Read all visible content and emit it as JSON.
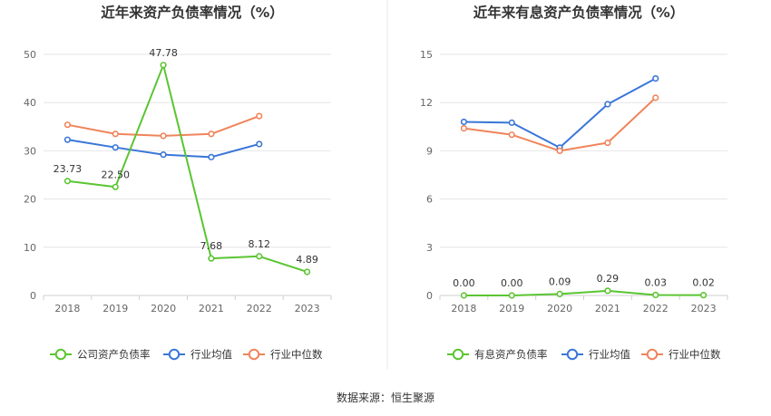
{
  "source_note": "数据来源：恒生聚源",
  "chart_data": [
    {
      "type": "line",
      "title": "近年来资产负债率情况（%）",
      "categories": [
        "2018",
        "2019",
        "2020",
        "2021",
        "2022",
        "2023"
      ],
      "ylim": [
        0,
        50
      ],
      "yticks": [
        0,
        10,
        20,
        30,
        40,
        50
      ],
      "grid": true,
      "legend_position": "bottom",
      "series": [
        {
          "name": "公司资产负债率",
          "color": "#5ac531",
          "values": [
            23.73,
            22.5,
            47.78,
            7.68,
            8.12,
            4.89
          ],
          "labels": [
            "23.73",
            "22.50",
            "47.78",
            "7.68",
            "8.12",
            "4.89"
          ]
        },
        {
          "name": "行业均值",
          "color": "#3a76d8",
          "values": [
            32.3,
            30.7,
            29.2,
            28.7,
            31.4,
            null
          ]
        },
        {
          "name": "行业中位数",
          "color": "#f0845a",
          "values": [
            35.4,
            33.5,
            33.1,
            33.5,
            37.2,
            null
          ]
        }
      ]
    },
    {
      "type": "line",
      "title": "近年来有息资产负债率情况（%）",
      "categories": [
        "2018",
        "2019",
        "2020",
        "2021",
        "2022",
        "2023"
      ],
      "ylim": [
        0,
        15
      ],
      "yticks": [
        0,
        3,
        6,
        9,
        12,
        15
      ],
      "grid": true,
      "legend_position": "bottom",
      "series": [
        {
          "name": "有息资产负债率",
          "color": "#5ac531",
          "values": [
            0.0,
            0.0,
            0.09,
            0.29,
            0.03,
            0.02
          ],
          "labels": [
            "0.00",
            "0.00",
            "0.09",
            "0.29",
            "0.03",
            "0.02"
          ]
        },
        {
          "name": "行业均值",
          "color": "#3a76d8",
          "values": [
            10.8,
            10.75,
            9.2,
            11.9,
            13.5,
            null
          ]
        },
        {
          "name": "行业中位数",
          "color": "#f0845a",
          "values": [
            10.4,
            10.0,
            9.0,
            9.5,
            12.3,
            null
          ]
        }
      ]
    }
  ]
}
